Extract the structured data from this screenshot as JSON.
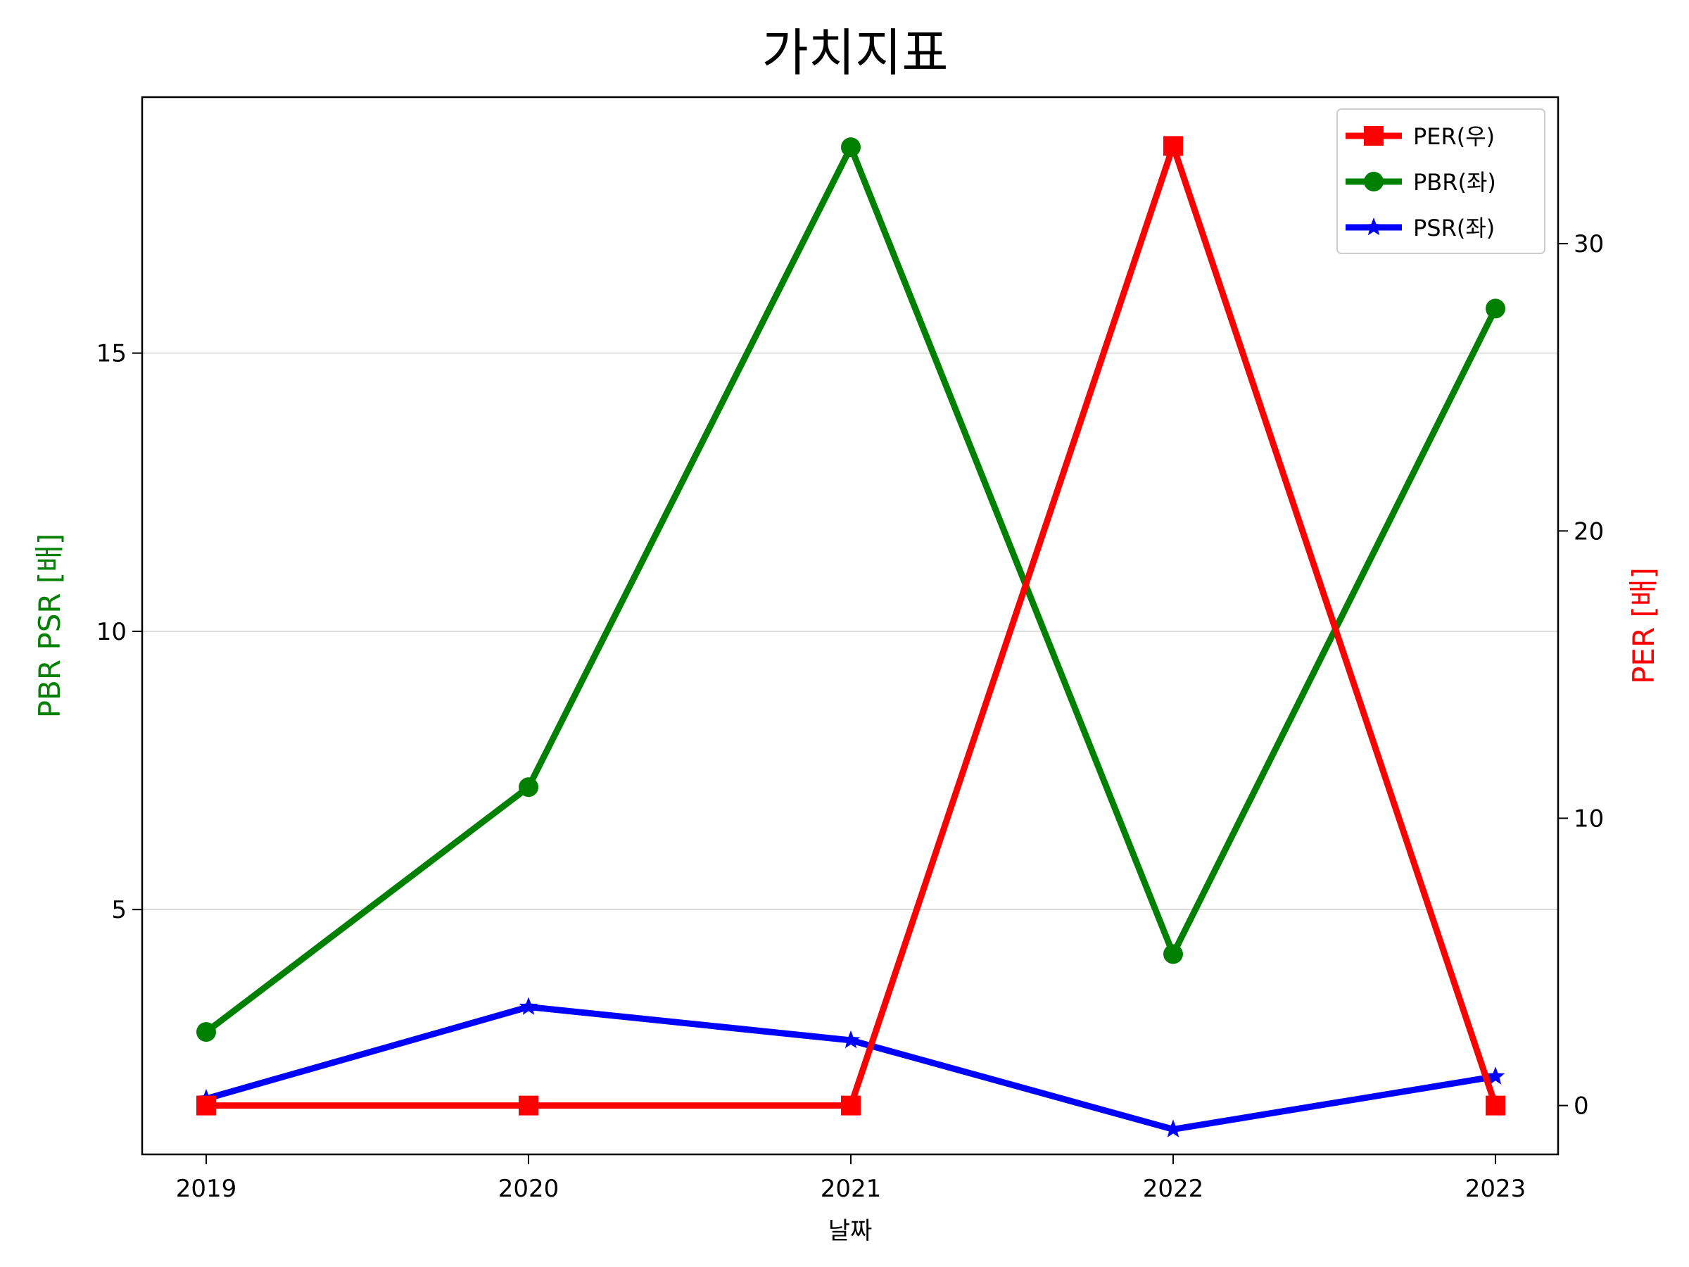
{
  "chart_data": {
    "type": "line",
    "title": "가치지표",
    "xlabel": "날짜",
    "ylabel_left": "PBR PSR [배]",
    "ylabel_right": "PER [배]",
    "categories": [
      "2019",
      "2020",
      "2021",
      "2022",
      "2023"
    ],
    "left_axis": {
      "ylim": [
        0.6,
        19.6
      ],
      "ticks": [
        5,
        10,
        15
      ],
      "grid": true
    },
    "right_axis": {
      "ylim": [
        -1.7,
        35.1
      ],
      "ticks": [
        0,
        10,
        20,
        30
      ]
    },
    "legend": {
      "placement": "top-right"
    },
    "series": [
      {
        "name": "PER(우)",
        "axis": "right",
        "color": "#ff0000",
        "marker": "square",
        "values": [
          0,
          0,
          0,
          33.4,
          0
        ]
      },
      {
        "name": "PBR(좌)",
        "axis": "left",
        "color": "#008000",
        "marker": "circle",
        "values": [
          2.8,
          7.2,
          18.7,
          4.2,
          15.8
        ]
      },
      {
        "name": "PSR(좌)",
        "axis": "left",
        "color": "#0000ff",
        "marker": "star",
        "values": [
          1.6,
          3.25,
          2.65,
          1.05,
          2.0
        ]
      }
    ]
  }
}
